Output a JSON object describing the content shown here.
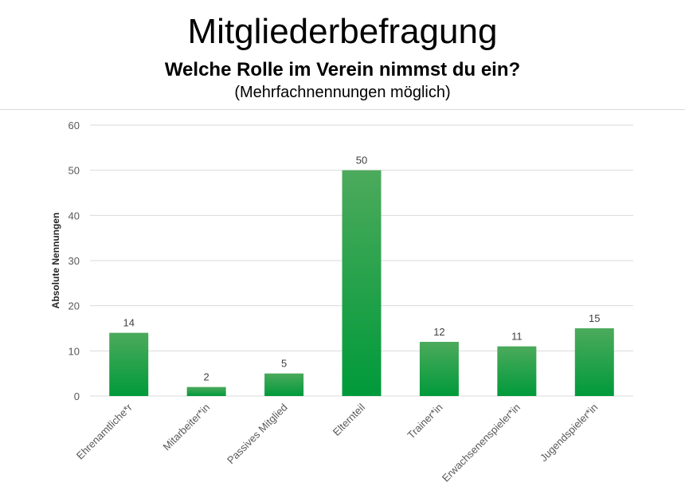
{
  "header": {
    "title": "Mitgliederbefragung",
    "subtitle": "Welche Rolle im Verein nimmst du ein?",
    "note": "(Mehrfachnennungen möglich)"
  },
  "colors": {
    "bar_top": "#4caa5c",
    "bar_bottom": "#009a3a",
    "grid": "#d9d9d9"
  },
  "chart_data": {
    "type": "bar",
    "title": "Welche Rolle im Verein nimmst du ein?",
    "subtitle": "(Mehrfachnennungen möglich)",
    "categories": [
      "Ehrenamtliche*r",
      "Mitarbeiter*in",
      "Passives Mitglied",
      "Elternteil",
      "Trainer*in",
      "Erwachsenenspieler*in",
      "Jugendspieler*in"
    ],
    "values": [
      14,
      2,
      5,
      50,
      12,
      11,
      15
    ],
    "xlabel": "",
    "ylabel": "Absolute Nennungen",
    "ylim": [
      0,
      60
    ],
    "yticks": [
      0,
      10,
      20,
      30,
      40,
      50,
      60
    ],
    "grid": true,
    "data_labels": true
  }
}
